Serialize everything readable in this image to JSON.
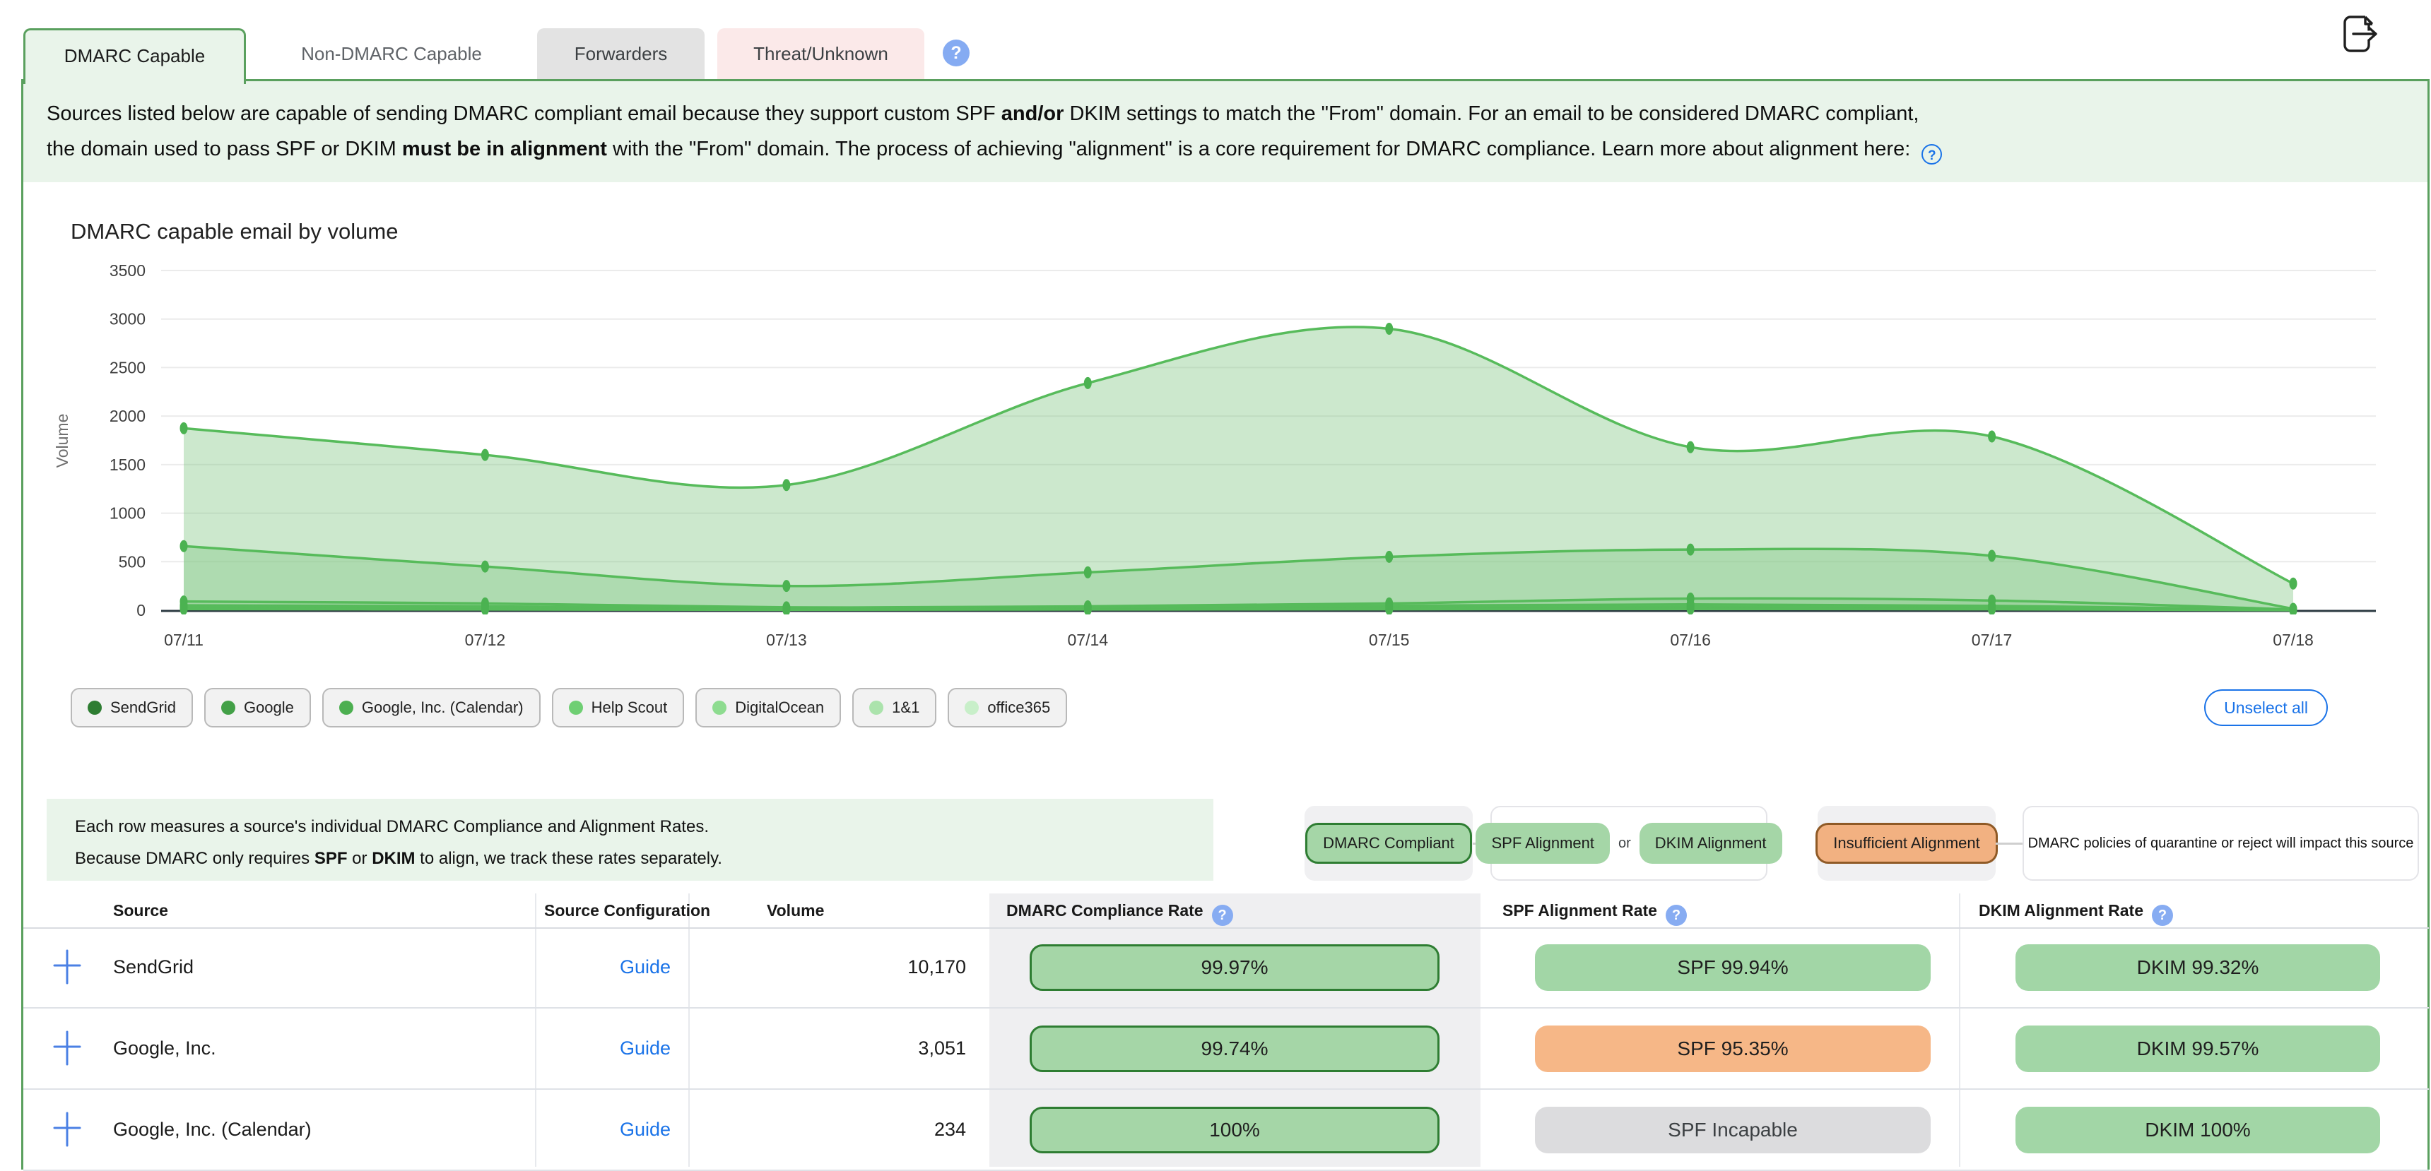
{
  "tabs": {
    "items": [
      {
        "label": "DMARC Capable",
        "state": "active"
      },
      {
        "label": "Non-DMARC Capable",
        "state": "plain"
      },
      {
        "label": "Forwarders",
        "state": "gray"
      },
      {
        "label": "Threat/Unknown",
        "state": "pink"
      }
    ]
  },
  "icons": {
    "help_glyph": "?",
    "export_icon": "file-export-icon",
    "legend_dot": "series-color-dot",
    "expand_glyph": "+"
  },
  "banner": {
    "line1": [
      {
        "t": "Sources listed below are capable of sending DMARC compliant email because they support custom SPF ",
        "b": false
      },
      {
        "t": "and/or",
        "b": true
      },
      {
        "t": " DKIM settings to match the \"From\" domain. For an email to be considered DMARC compliant,",
        "b": false
      }
    ],
    "line2": [
      {
        "t": "the domain used to pass SPF or DKIM ",
        "b": false
      },
      {
        "t": "must be in alignment",
        "b": true
      },
      {
        "t": " with the \"From\" domain. The process of achieving \"alignment\" is a core requirement for DMARC compliance. Learn more about alignment here: ",
        "b": false
      }
    ]
  },
  "chart_data": {
    "type": "area",
    "title": "DMARC capable email by volume",
    "ylabel": "Volume",
    "xlabel": "",
    "x": [
      "07/11",
      "07/12",
      "07/13",
      "07/14",
      "07/15",
      "07/16",
      "07/17",
      "07/18"
    ],
    "ylim": [
      0,
      3500
    ],
    "yticks": [
      0,
      500,
      1000,
      1500,
      2000,
      2500,
      3000,
      3500
    ],
    "grid": true,
    "legend_position": "bottom",
    "series": [
      {
        "name": "SendGrid",
        "color": "#2e7d32",
        "values": [
          1875,
          1600,
          1290,
          2340,
          2900,
          1680,
          1790,
          275
        ]
      },
      {
        "name": "Google",
        "color": "#43a047",
        "values": [
          660,
          450,
          250,
          390,
          550,
          625,
          560,
          15
        ]
      },
      {
        "name": "Google, Inc. (Calendar)",
        "color": "#4caf50",
        "values": [
          90,
          70,
          30,
          40,
          70,
          120,
          100,
          8
        ]
      },
      {
        "name": "Help Scout",
        "color": "#6fcf73",
        "values": [
          50,
          40,
          20,
          25,
          45,
          60,
          45,
          5
        ]
      },
      {
        "name": "DigitalOcean",
        "color": "#8edc90",
        "values": [
          35,
          28,
          12,
          18,
          28,
          35,
          28,
          3
        ]
      },
      {
        "name": "1&1",
        "color": "#abe3ac",
        "values": [
          22,
          16,
          8,
          10,
          16,
          22,
          16,
          2
        ]
      },
      {
        "name": "office365",
        "color": "#c8efc9",
        "values": [
          12,
          8,
          5,
          8,
          10,
          14,
          10,
          1
        ]
      }
    ]
  },
  "chart_controls": {
    "unselect_label": "Unselect all"
  },
  "table_note": {
    "line1": [
      {
        "t": "Each row measures a source's individual DMARC Compliance and Alignment Rates.",
        "b": false
      }
    ],
    "line2": [
      {
        "t": "Because DMARC only requires ",
        "b": false
      },
      {
        "t": "SPF",
        "b": true
      },
      {
        "t": " or ",
        "b": false
      },
      {
        "t": "DKIM",
        "b": true
      },
      {
        "t": " to align, we track these rates separately.",
        "b": false
      }
    ]
  },
  "rate_legend": {
    "compliant_label": "DMARC Compliant",
    "spf_label": "SPF Alignment",
    "or_label": "or",
    "dkim_label": "DKIM Alignment",
    "insufficient_label": "Insufficient Alignment",
    "impact_text": "DMARC policies of quarantine or reject will impact this source"
  },
  "table": {
    "columns": [
      {
        "label": "Source",
        "help": false
      },
      {
        "label": "Source Configuration",
        "help": false
      },
      {
        "label": "Volume",
        "help": false
      },
      {
        "label": "DMARC Compliance Rate",
        "help": true
      },
      {
        "label": "SPF Alignment Rate",
        "help": true
      },
      {
        "label": "DKIM Alignment Rate",
        "help": true
      }
    ],
    "rows": [
      {
        "source": "SendGrid",
        "config": "Guide",
        "volume": "10,170",
        "dmarc": {
          "label": "99.97%",
          "variant": "green-bordered"
        },
        "spf": {
          "label": "SPF 99.94%",
          "variant": "green"
        },
        "dkim": {
          "label": "DKIM 99.32%",
          "variant": "green"
        }
      },
      {
        "source": "Google, Inc.",
        "config": "Guide",
        "volume": "3,051",
        "dmarc": {
          "label": "99.74%",
          "variant": "green-bordered"
        },
        "spf": {
          "label": "SPF 95.35%",
          "variant": "orange"
        },
        "dkim": {
          "label": "DKIM 99.57%",
          "variant": "green"
        }
      },
      {
        "source": "Google, Inc. (Calendar)",
        "config": "Guide",
        "volume": "234",
        "dmarc": {
          "label": "100%",
          "variant": "green-bordered"
        },
        "spf": {
          "label": "SPF Incapable",
          "variant": "gray"
        },
        "dkim": {
          "label": "DKIM 100%",
          "variant": "green"
        }
      }
    ]
  },
  "colors": {
    "container_border": "#5aa05e",
    "banner_bg": "#e9f4ea",
    "chart_line": "#57bb5b",
    "chart_fill": "rgba(134,201,137,0.42)",
    "chart_dot": "#4bb251",
    "pill_green": "#a5d6a7",
    "pill_green_border": "#2e7d32",
    "pill_orange": "#f6b787",
    "pill_gray": "#dcdcde",
    "link_blue": "#1a73e8",
    "help_blue": "#85abf2"
  }
}
